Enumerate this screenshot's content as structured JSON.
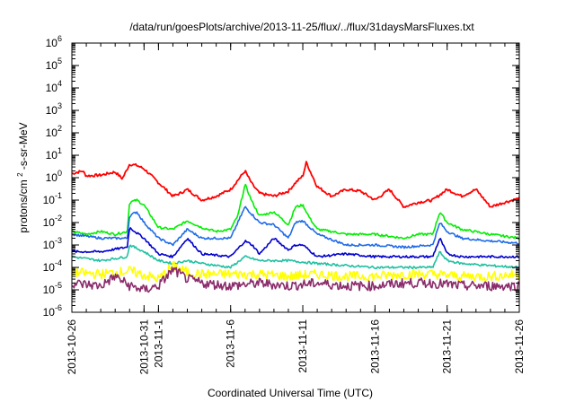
{
  "chart_data": {
    "type": "line",
    "title": "/data/run/goesPlots/archive/2013-11-25/flux/../flux/31daysMarsFluxes.txt",
    "xlabel": "Coordinated Universal Time (UTC)",
    "ylabel_parts": [
      "protons/cm",
      "2",
      "-s-sr-MeV"
    ],
    "y_scale": "log",
    "ylim": [
      1e-06,
      1000000.0
    ],
    "xlim": [
      "2013-10-26",
      "2013-11-26"
    ],
    "grid": false,
    "legend": "none",
    "y_ticks": [
      {
        "value": 1e-06,
        "base": "10",
        "exp": "-6"
      },
      {
        "value": 1e-05,
        "base": "10",
        "exp": "-5"
      },
      {
        "value": 0.0001,
        "base": "10",
        "exp": "-4"
      },
      {
        "value": 0.001,
        "base": "10",
        "exp": "-3"
      },
      {
        "value": 0.01,
        "base": "10",
        "exp": "-2"
      },
      {
        "value": 0.1,
        "base": "10",
        "exp": "-1"
      },
      {
        "value": 1,
        "base": "10",
        "exp": "0"
      },
      {
        "value": 10.0,
        "base": "10",
        "exp": "1"
      },
      {
        "value": 100.0,
        "base": "10",
        "exp": "2"
      },
      {
        "value": 1000.0,
        "base": "10",
        "exp": "3"
      },
      {
        "value": 10000.0,
        "base": "10",
        "exp": "4"
      },
      {
        "value": 100000.0,
        "base": "10",
        "exp": "5"
      },
      {
        "value": 1000000.0,
        "base": "10",
        "exp": "6"
      }
    ],
    "x_ticks": [
      {
        "value": "2013-10-26",
        "label": "2013-10-26"
      },
      {
        "value": "2013-10-31",
        "label": "2013-10-31"
      },
      {
        "value": "2013-11-01",
        "label": "2013-11-1"
      },
      {
        "value": "2013-11-06",
        "label": "2013-11-6"
      },
      {
        "value": "2013-11-11",
        "label": "2013-11-11"
      },
      {
        "value": "2013-11-16",
        "label": "2013-11-16"
      },
      {
        "value": "2013-11-21",
        "label": "2013-11-21"
      },
      {
        "value": "2013-11-26",
        "label": "2013-11-26"
      }
    ],
    "series": [
      {
        "color": "#ff0000",
        "x": [
          "2013-10-26",
          "2013-10-26T18:00",
          "2013-10-27",
          "2013-10-28",
          "2013-10-29",
          "2013-10-29T12:00",
          "2013-10-30",
          "2013-10-30T12:00",
          "2013-10-31",
          "2013-11-01",
          "2013-11-02",
          "2013-11-02T12:00",
          "2013-11-03",
          "2013-11-04",
          "2013-11-05",
          "2013-11-06",
          "2013-11-07",
          "2013-11-07T12:00",
          "2013-11-08",
          "2013-11-09",
          "2013-11-10",
          "2013-11-10T12:00",
          "2013-11-11",
          "2013-11-11T06:00",
          "2013-11-11T12:00",
          "2013-11-12",
          "2013-11-13",
          "2013-11-14",
          "2013-11-15",
          "2013-11-16",
          "2013-11-17",
          "2013-11-18",
          "2013-11-19",
          "2013-11-20",
          "2013-11-21",
          "2013-11-22",
          "2013-11-23",
          "2013-11-24",
          "2013-11-25",
          "2013-11-26"
        ],
        "y": [
          1.5,
          2,
          1.2,
          1.3,
          1.8,
          0.9,
          4,
          3.5,
          2.5,
          0.6,
          0.15,
          0.2,
          0.3,
          0.1,
          0.15,
          0.3,
          2,
          0.5,
          0.2,
          0.15,
          0.25,
          0.6,
          1.2,
          5,
          2,
          0.4,
          0.15,
          0.3,
          0.25,
          0.1,
          0.3,
          0.05,
          0.08,
          0.1,
          0.3,
          0.15,
          0.3,
          0.05,
          0.08,
          0.12
        ]
      },
      {
        "color": "#00ee00",
        "x": [
          "2013-10-26",
          "2013-10-27",
          "2013-10-28",
          "2013-10-29",
          "2013-10-29T20:00",
          "2013-10-30",
          "2013-10-30T12:00",
          "2013-10-31",
          "2013-11-01",
          "2013-11-02",
          "2013-11-03",
          "2013-11-04",
          "2013-11-05",
          "2013-11-06",
          "2013-11-06T12:00",
          "2013-11-07",
          "2013-11-07T12:00",
          "2013-11-08",
          "2013-11-09",
          "2013-11-10",
          "2013-11-10T12:00",
          "2013-11-11",
          "2013-11-11T12:00",
          "2013-11-12",
          "2013-11-13",
          "2013-11-14",
          "2013-11-16",
          "2013-11-18",
          "2013-11-19",
          "2013-11-20",
          "2013-11-20T12:00",
          "2013-11-21",
          "2013-11-22",
          "2013-11-24",
          "2013-11-26"
        ],
        "y": [
          0.004,
          0.003,
          0.004,
          0.003,
          0.004,
          0.08,
          0.1,
          0.06,
          0.006,
          0.005,
          0.012,
          0.006,
          0.004,
          0.005,
          0.02,
          0.5,
          0.08,
          0.02,
          0.03,
          0.008,
          0.05,
          0.06,
          0.015,
          0.005,
          0.004,
          0.003,
          0.003,
          0.002,
          0.003,
          0.003,
          0.03,
          0.01,
          0.005,
          0.003,
          0.002
        ]
      },
      {
        "color": "#1e6be8",
        "x": [
          "2013-10-26",
          "2013-10-28",
          "2013-10-29T20:00",
          "2013-10-30",
          "2013-10-30T12:00",
          "2013-10-31",
          "2013-11-01",
          "2013-11-02",
          "2013-11-03",
          "2013-11-04",
          "2013-11-06",
          "2013-11-06T12:00",
          "2013-11-07",
          "2013-11-08",
          "2013-11-09",
          "2013-11-10",
          "2013-11-10T12:00",
          "2013-11-11",
          "2013-11-12",
          "2013-11-14",
          "2013-11-16",
          "2013-11-18",
          "2013-11-20",
          "2013-11-20T12:00",
          "2013-11-21",
          "2013-11-22",
          "2013-11-24",
          "2013-11-26"
        ],
        "y": [
          0.003,
          0.002,
          0.002,
          0.02,
          0.03,
          0.01,
          0.002,
          0.001,
          0.005,
          0.002,
          0.002,
          0.01,
          0.05,
          0.01,
          0.008,
          0.002,
          0.01,
          0.012,
          0.003,
          0.001,
          0.001,
          0.0008,
          0.001,
          0.01,
          0.004,
          0.002,
          0.0015,
          0.0012
        ]
      },
      {
        "color": "#0000cc",
        "x": [
          "2013-10-26",
          "2013-10-28",
          "2013-10-29T20:00",
          "2013-10-30",
          "2013-10-31",
          "2013-11-01",
          "2013-11-02",
          "2013-11-03",
          "2013-11-04",
          "2013-11-06",
          "2013-11-07",
          "2013-11-07T12:00",
          "2013-11-08",
          "2013-11-09",
          "2013-11-10",
          "2013-11-10T12:00",
          "2013-11-11",
          "2013-11-12",
          "2013-11-14",
          "2013-11-16",
          "2013-11-18",
          "2013-11-20",
          "2013-11-20T12:00",
          "2013-11-21",
          "2013-11-22",
          "2013-11-24",
          "2013-11-26"
        ],
        "y": [
          0.0005,
          0.0005,
          0.0008,
          0.006,
          0.002,
          0.0004,
          0.0003,
          0.002,
          0.0004,
          0.0003,
          0.0015,
          0.001,
          0.0004,
          0.002,
          0.0006,
          0.001,
          0.001,
          0.0003,
          0.0004,
          0.0003,
          0.0003,
          0.0003,
          0.002,
          0.0004,
          0.0003,
          0.0003,
          0.0003
        ]
      },
      {
        "color": "#20c0a0",
        "x": [
          "2013-10-26",
          "2013-10-28",
          "2013-10-29T20:00",
          "2013-10-30",
          "2013-10-31",
          "2013-11-01",
          "2013-11-02",
          "2013-11-03",
          "2013-11-04",
          "2013-11-06",
          "2013-11-07",
          "2013-11-08",
          "2013-11-10",
          "2013-11-12",
          "2013-11-14",
          "2013-11-16",
          "2013-11-18",
          "2013-11-20",
          "2013-11-20T12:00",
          "2013-11-21",
          "2013-11-22",
          "2013-11-24",
          "2013-11-26"
        ],
        "y": [
          0.0003,
          0.0002,
          0.0003,
          0.001,
          0.0005,
          0.0002,
          0.00015,
          0.0002,
          0.00015,
          0.0001,
          0.0003,
          0.0002,
          0.0002,
          0.00015,
          0.00012,
          0.0001,
          0.0001,
          0.0001,
          0.0005,
          0.0002,
          0.00015,
          0.00012,
          0.0001
        ]
      },
      {
        "color": "#ffff00",
        "x": [
          "2013-10-26",
          "2013-10-28",
          "2013-10-30",
          "2013-11-01",
          "2013-11-02",
          "2013-11-03",
          "2013-11-04",
          "2013-11-06",
          "2013-11-08",
          "2013-11-10",
          "2013-11-12",
          "2013-11-14",
          "2013-11-16",
          "2013-11-18",
          "2013-11-20",
          "2013-11-22",
          "2013-11-24",
          "2013-11-26"
        ],
        "y": [
          6e-05,
          5e-05,
          7e-05,
          3e-05,
          0.00012,
          6e-05,
          5e-05,
          5e-05,
          5e-05,
          4e-05,
          5e-05,
          4e-05,
          4e-05,
          5e-05,
          5e-05,
          4e-05,
          4e-05,
          5e-05
        ]
      },
      {
        "color": "#8b2c6b",
        "x": [
          "2013-10-26",
          "2013-10-28",
          "2013-10-29",
          "2013-10-30",
          "2013-10-31",
          "2013-11-01",
          "2013-11-02",
          "2013-11-03",
          "2013-11-04",
          "2013-11-06",
          "2013-11-08",
          "2013-11-10",
          "2013-11-12",
          "2013-11-14",
          "2013-11-16",
          "2013-11-18",
          "2013-11-20",
          "2013-11-22",
          "2013-11-24",
          "2013-11-26"
        ],
        "y": [
          2e-05,
          1.5e-05,
          4e-05,
          1.5e-05,
          1e-05,
          1.5e-05,
          8e-05,
          3e-05,
          2e-05,
          1.5e-05,
          2e-05,
          1.5e-05,
          2e-05,
          1.5e-05,
          1.5e-05,
          2e-05,
          2e-05,
          1.5e-05,
          1.5e-05,
          1.5e-05
        ]
      }
    ]
  }
}
